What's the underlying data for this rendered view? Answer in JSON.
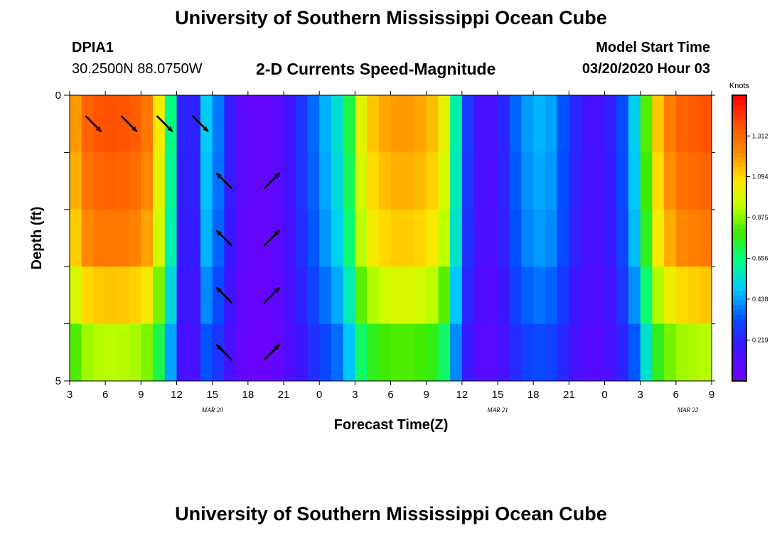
{
  "header": {
    "title": "University of Southern Mississippi Ocean Cube",
    "footer_title": "University of Southern Mississippi Ocean Cube",
    "station_id": "DPIA1",
    "station_coords": "30.2500N 88.0750W",
    "subtitle": "2-D Currents Speed-Magnitude",
    "model_start_label": "Model Start Time",
    "model_start_value": "03/20/2020 Hour 03"
  },
  "chart_data": {
    "type": "heatmap",
    "title": "2-D Currents Speed-Magnitude",
    "xlabel": "Forecast Time(Z)",
    "ylabel": "Depth (ft)",
    "x_ticks": [
      "3",
      "6",
      "9",
      "12",
      "15",
      "18",
      "21",
      "0",
      "3",
      "6",
      "9",
      "12",
      "15",
      "18",
      "21",
      "0",
      "3",
      "6",
      "9"
    ],
    "x_hours": [
      0,
      3,
      6,
      9,
      12,
      15,
      18,
      21,
      24,
      27,
      30,
      33,
      36,
      39,
      42,
      45,
      48,
      51,
      54
    ],
    "date_labels": [
      {
        "text": "MAR 20",
        "hour": 12
      },
      {
        "text": "MAR 21",
        "hour": 36
      },
      {
        "text": "MAR 22",
        "hour": 52
      }
    ],
    "y_ticks": [
      "0",
      "5"
    ],
    "ylim": [
      0,
      5
    ],
    "depth_rows": 5,
    "columns": 54,
    "colorbar": {
      "title": "Knots",
      "ticks": [
        "0.219",
        "0.438",
        "0.656",
        "0.875",
        "1.094",
        "1.312"
      ],
      "range": [
        0,
        1.53
      ]
    },
    "speed_profile": [
      {
        "h": 0,
        "v": 1.05
      },
      {
        "h": 0.5,
        "v": 1.2
      },
      {
        "h": 1,
        "v": 1.3
      },
      {
        "h": 2,
        "v": 1.36
      },
      {
        "h": 4,
        "v": 1.38
      },
      {
        "h": 6,
        "v": 1.33
      },
      {
        "h": 7,
        "v": 1.22
      },
      {
        "h": 7.5,
        "v": 1.05
      },
      {
        "h": 8,
        "v": 0.85
      },
      {
        "h": 8.5,
        "v": 0.65
      },
      {
        "h": 9,
        "v": 0.4
      },
      {
        "h": 9.5,
        "v": 0.22
      },
      {
        "h": 10,
        "v": 0.13
      },
      {
        "h": 10.5,
        "v": 0.22
      },
      {
        "h": 11,
        "v": 0.4
      },
      {
        "h": 11.5,
        "v": 0.5
      },
      {
        "h": 12,
        "v": 0.48
      },
      {
        "h": 13,
        "v": 0.3
      },
      {
        "h": 14,
        "v": 0.12
      },
      {
        "h": 15,
        "v": 0.06
      },
      {
        "h": 16,
        "v": 0.05
      },
      {
        "h": 17,
        "v": 0.06
      },
      {
        "h": 18,
        "v": 0.12
      },
      {
        "h": 19,
        "v": 0.22
      },
      {
        "h": 20,
        "v": 0.32
      },
      {
        "h": 21,
        "v": 0.42
      },
      {
        "h": 22,
        "v": 0.5
      },
      {
        "h": 23,
        "v": 0.6
      },
      {
        "h": 23.5,
        "v": 0.72
      },
      {
        "h": 24,
        "v": 0.92
      },
      {
        "h": 25,
        "v": 1.1
      },
      {
        "h": 27,
        "v": 1.2
      },
      {
        "h": 29,
        "v": 1.2
      },
      {
        "h": 31,
        "v": 1.12
      },
      {
        "h": 32,
        "v": 0.9
      },
      {
        "h": 32.5,
        "v": 0.6
      },
      {
        "h": 33,
        "v": 0.38
      },
      {
        "h": 34,
        "v": 0.18
      },
      {
        "h": 35,
        "v": 0.12
      },
      {
        "h": 36,
        "v": 0.15
      },
      {
        "h": 37,
        "v": 0.3
      },
      {
        "h": 38,
        "v": 0.42
      },
      {
        "h": 40,
        "v": 0.48
      },
      {
        "h": 41,
        "v": 0.4
      },
      {
        "h": 42,
        "v": 0.28
      },
      {
        "h": 43,
        "v": 0.18
      },
      {
        "h": 44,
        "v": 0.14
      },
      {
        "h": 45,
        "v": 0.16
      },
      {
        "h": 46,
        "v": 0.26
      },
      {
        "h": 47,
        "v": 0.4
      },
      {
        "h": 48,
        "v": 0.62
      },
      {
        "h": 48.5,
        "v": 0.82
      },
      {
        "h": 49,
        "v": 1.05
      },
      {
        "h": 50,
        "v": 1.2
      },
      {
        "h": 51,
        "v": 1.32
      },
      {
        "h": 54,
        "v": 1.38
      }
    ],
    "depth_factors": [
      1.0,
      0.97,
      0.93,
      0.82,
      0.68
    ],
    "vectors": [
      {
        "h": 1,
        "row": 0,
        "dir": "se"
      },
      {
        "h": 4,
        "row": 0,
        "dir": "se"
      },
      {
        "h": 7,
        "row": 0,
        "dir": "se"
      },
      {
        "h": 10,
        "row": 0,
        "dir": "se"
      },
      {
        "h": 12,
        "row": 1,
        "dir": "nw"
      },
      {
        "h": 12,
        "row": 2,
        "dir": "nw"
      },
      {
        "h": 12,
        "row": 3,
        "dir": "nw"
      },
      {
        "h": 12,
        "row": 4,
        "dir": "nw"
      },
      {
        "h": 16,
        "row": 1,
        "dir": "ne"
      },
      {
        "h": 16,
        "row": 2,
        "dir": "ne"
      },
      {
        "h": 16,
        "row": 3,
        "dir": "ne"
      },
      {
        "h": 16,
        "row": 4,
        "dir": "ne"
      }
    ]
  }
}
